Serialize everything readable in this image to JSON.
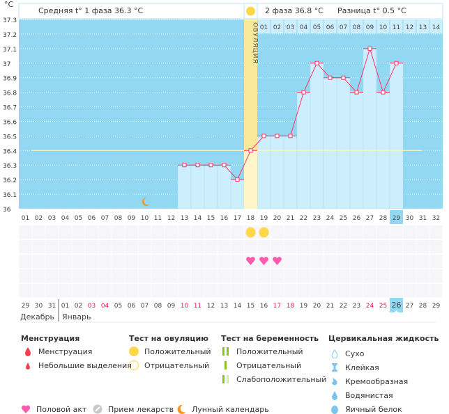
{
  "header": {
    "unit": "°C",
    "phase1": "Средняя t° 1 фаза 36.3 °C",
    "phase2": "2 фаза 36.8 °C",
    "diff": "Разница t° 0.5 °C",
    "ovulation_label": "ОВУЛЯЦИЯ"
  },
  "chart_data": {
    "type": "bar",
    "title": "",
    "xlabel": "",
    "ylabel": "°C",
    "ylim": [
      36,
      37.3
    ],
    "yticks": [
      "36",
      "36.1",
      "36.2",
      "36.3",
      "36.4",
      "36.5",
      "36.6",
      "36.7",
      "36.8",
      "36.9",
      "37",
      "37.1",
      "37.2",
      "37.3"
    ],
    "cycle_days": [
      "01",
      "02",
      "03",
      "04",
      "05",
      "06",
      "07",
      "08",
      "09",
      "10",
      "11",
      "12",
      "13",
      "14",
      "15",
      "16",
      "17",
      "18",
      "19",
      "20",
      "21",
      "22",
      "23",
      "24",
      "25",
      "26",
      "27",
      "28",
      "29",
      "30",
      "31",
      "32"
    ],
    "phase2_days": [
      "01",
      "02",
      "03",
      "04",
      "05",
      "06",
      "07",
      "08",
      "09",
      "10",
      "11",
      "12",
      "13",
      "14"
    ],
    "temperatures": [
      {
        "day": 13,
        "t": 36.3
      },
      {
        "day": 14,
        "t": 36.3
      },
      {
        "day": 15,
        "t": 36.3
      },
      {
        "day": 16,
        "t": 36.3
      },
      {
        "day": 17,
        "t": 36.2
      },
      {
        "day": 18,
        "t": 36.4
      },
      {
        "day": 19,
        "t": 36.5
      },
      {
        "day": 20,
        "t": 36.5
      },
      {
        "day": 21,
        "t": 36.5
      },
      {
        "day": 22,
        "t": 36.8
      },
      {
        "day": 23,
        "t": 37.0
      },
      {
        "day": 24,
        "t": 36.9
      },
      {
        "day": 25,
        "t": 36.9
      },
      {
        "day": 26,
        "t": 36.8
      },
      {
        "day": 27,
        "t": 37.1
      },
      {
        "day": 28,
        "t": 36.8
      },
      {
        "day": 29,
        "t": 37.0
      }
    ],
    "cover_line": 36.4,
    "ovulation_day": 18,
    "current_day": 29,
    "moon_day": 10,
    "ovulation_test_positive_days": [
      18,
      19
    ],
    "intercourse_days": [
      18,
      19,
      20
    ],
    "dates": [
      "29",
      "30",
      "31",
      "01",
      "02",
      "03",
      "04",
      "05",
      "06",
      "07",
      "08",
      "09",
      "10",
      "11",
      "12",
      "13",
      "14",
      "15",
      "16",
      "17",
      "18",
      "19",
      "20",
      "21",
      "22",
      "23",
      "24",
      "25",
      "26",
      "27",
      "28",
      "29"
    ],
    "weekend_date_indices": [
      5,
      6,
      12,
      13,
      19,
      20,
      26,
      27
    ],
    "months": [
      "Декабрь",
      "Январь"
    ]
  },
  "colors": {
    "sky": "#93d8f2",
    "bar": "#cdeefc",
    "line": "#ff3366",
    "ovulation": "#f7e89a",
    "heart": "#ff5aae",
    "sun": "#ffd84a",
    "moon": "#f7941d"
  },
  "legend": {
    "menstruation": {
      "title": "Менструация",
      "items": [
        "Менструация",
        "Небольшие выделения"
      ]
    },
    "ovulation_test": {
      "title": "Тест на овуляцию",
      "items": [
        "Положительный",
        "Отрицательный"
      ]
    },
    "pregnancy_test": {
      "title": "Тест на беременность",
      "items": [
        "Положительный",
        "Отрицательный",
        "Слабоположительный"
      ]
    },
    "cervical": {
      "title": "Цервикальная жидкость",
      "items": [
        "Сухо",
        "Клейкая",
        "Кремообразная",
        "Водянистая",
        "Яичный белок"
      ]
    },
    "other": [
      "Половой акт",
      "Прием лекарств",
      "Лунный календарь"
    ]
  }
}
